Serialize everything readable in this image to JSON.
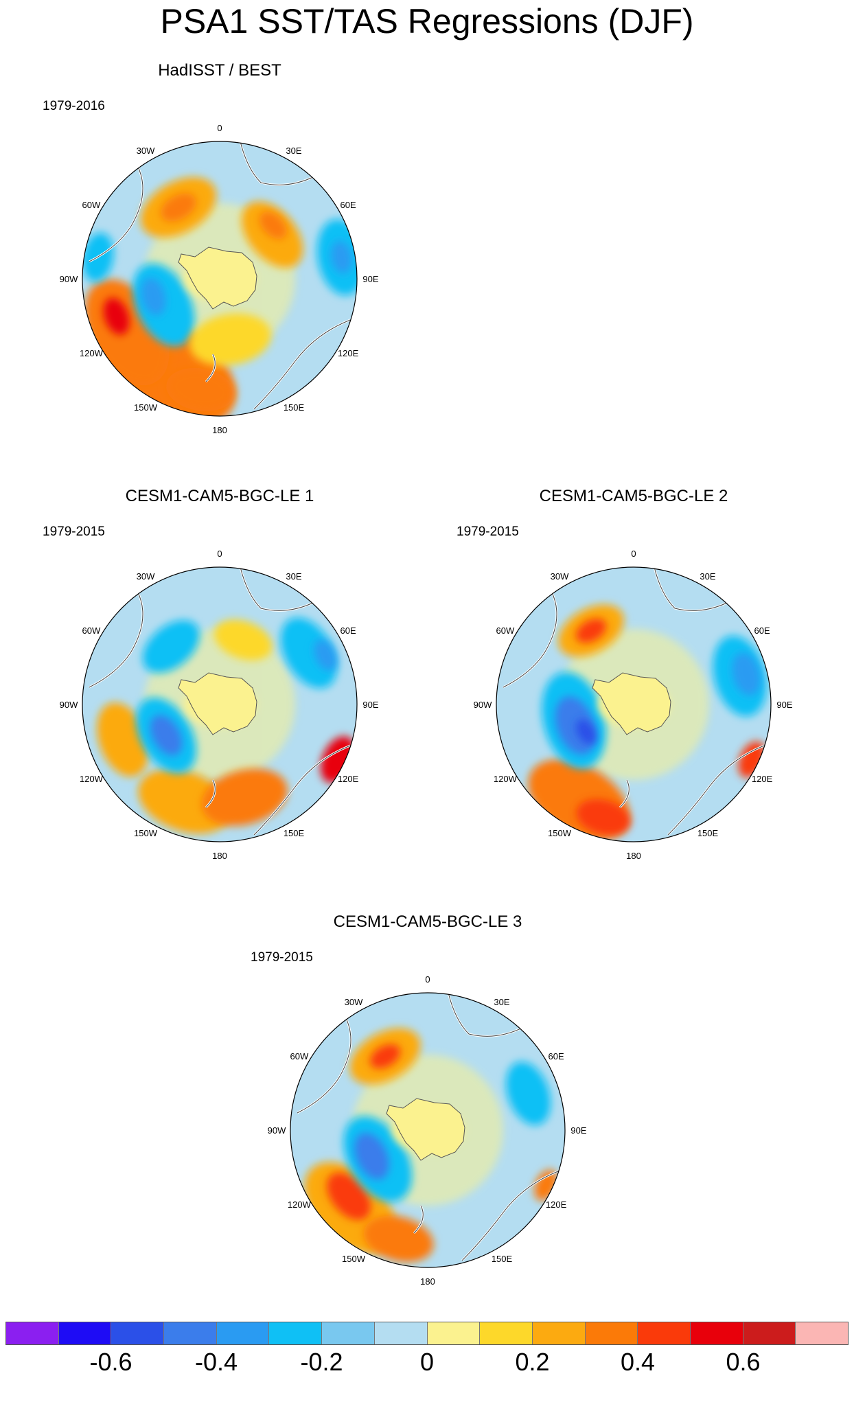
{
  "title": "PSA1 SST/TAS Regressions (DJF)",
  "lon_labels": [
    "0",
    "30E",
    "60E",
    "90E",
    "120E",
    "150E",
    "180",
    "150W",
    "120W",
    "90W",
    "60W",
    "30W"
  ],
  "panels": [
    {
      "title": "HadISST / BEST",
      "period": "1979-2016",
      "anomalies": [
        {
          "lon": 210,
          "r": 0.78,
          "size": 0.55,
          "level": 4
        },
        {
          "lon": 240,
          "r": 0.78,
          "size": 0.42,
          "level": 4
        },
        {
          "lon": 250,
          "r": 0.8,
          "size": 0.14,
          "level": 6
        },
        {
          "lon": 190,
          "r": 0.82,
          "size": 0.25,
          "level": 4
        },
        {
          "lon": 330,
          "r": 0.6,
          "size": 0.3,
          "level": 3
        },
        {
          "lon": 330,
          "r": 0.6,
          "size": 0.14,
          "level": 4
        },
        {
          "lon": 50,
          "r": 0.5,
          "size": 0.28,
          "level": 3
        },
        {
          "lon": 45,
          "r": 0.55,
          "size": 0.12,
          "level": 4
        },
        {
          "lon": 245,
          "r": 0.45,
          "size": 0.32,
          "level": -2
        },
        {
          "lon": 255,
          "r": 0.5,
          "size": 0.14,
          "level": -3
        },
        {
          "lon": 80,
          "r": 0.9,
          "size": 0.28,
          "level": -2
        },
        {
          "lon": 80,
          "r": 0.9,
          "size": 0.12,
          "level": -3
        },
        {
          "lon": 280,
          "r": 0.9,
          "size": 0.18,
          "level": -2
        },
        {
          "lon": 0,
          "r": 0.0,
          "size": 0.26,
          "level": 1
        },
        {
          "lon": 170,
          "r": 0.45,
          "size": 0.3,
          "level": 2
        }
      ]
    },
    {
      "title": "CESM1-CAM5-BGC-LE 1",
      "period": "1979-2015",
      "anomalies": [
        {
          "lon": 200,
          "r": 0.75,
          "size": 0.35,
          "level": 3
        },
        {
          "lon": 165,
          "r": 0.7,
          "size": 0.32,
          "level": 4
        },
        {
          "lon": 250,
          "r": 0.75,
          "size": 0.28,
          "level": 3
        },
        {
          "lon": 115,
          "r": 0.95,
          "size": 0.18,
          "level": 6
        },
        {
          "lon": 240,
          "r": 0.45,
          "size": 0.3,
          "level": -2
        },
        {
          "lon": 240,
          "r": 0.45,
          "size": 0.16,
          "level": -4
        },
        {
          "lon": 320,
          "r": 0.55,
          "size": 0.24,
          "level": -2
        },
        {
          "lon": 60,
          "r": 0.75,
          "size": 0.28,
          "level": -2
        },
        {
          "lon": 65,
          "r": 0.85,
          "size": 0.12,
          "level": -3
        },
        {
          "lon": 20,
          "r": 0.5,
          "size": 0.22,
          "level": 2
        },
        {
          "lon": 0,
          "r": 0.0,
          "size": 0.26,
          "level": 1
        }
      ]
    },
    {
      "title": "CESM1-CAM5-BGC-LE 2",
      "period": "1979-2015",
      "anomalies": [
        {
          "lon": 210,
          "r": 0.8,
          "size": 0.4,
          "level": 4
        },
        {
          "lon": 195,
          "r": 0.85,
          "size": 0.2,
          "level": 5
        },
        {
          "lon": 330,
          "r": 0.62,
          "size": 0.26,
          "level": 3
        },
        {
          "lon": 330,
          "r": 0.62,
          "size": 0.12,
          "level": 5
        },
        {
          "lon": 255,
          "r": 0.45,
          "size": 0.36,
          "level": -2
        },
        {
          "lon": 250,
          "r": 0.45,
          "size": 0.22,
          "level": -4
        },
        {
          "lon": 240,
          "r": 0.4,
          "size": 0.1,
          "level": -5
        },
        {
          "lon": 75,
          "r": 0.8,
          "size": 0.3,
          "level": -2
        },
        {
          "lon": 75,
          "r": 0.85,
          "size": 0.16,
          "level": -3
        },
        {
          "lon": 115,
          "r": 0.95,
          "size": 0.14,
          "level": 5
        },
        {
          "lon": 0,
          "r": 0.0,
          "size": 0.26,
          "level": 1
        }
      ]
    },
    {
      "title": "CESM1-CAM5-BGC-LE 3",
      "period": "1979-2015",
      "anomalies": [
        {
          "lon": 225,
          "r": 0.8,
          "size": 0.4,
          "level": 3
        },
        {
          "lon": 230,
          "r": 0.75,
          "size": 0.2,
          "level": 5
        },
        {
          "lon": 195,
          "r": 0.82,
          "size": 0.26,
          "level": 4
        },
        {
          "lon": 330,
          "r": 0.62,
          "size": 0.28,
          "level": 3
        },
        {
          "lon": 330,
          "r": 0.62,
          "size": 0.12,
          "level": 5
        },
        {
          "lon": 240,
          "r": 0.42,
          "size": 0.34,
          "level": -2
        },
        {
          "lon": 245,
          "r": 0.45,
          "size": 0.18,
          "level": -4
        },
        {
          "lon": 70,
          "r": 0.78,
          "size": 0.24,
          "level": -2
        },
        {
          "lon": 115,
          "r": 0.95,
          "size": 0.12,
          "level": 4
        },
        {
          "lon": 0,
          "r": 0.0,
          "size": 0.26,
          "level": 1
        }
      ]
    }
  ],
  "colorbar": {
    "colors": [
      "#8b1ff0",
      "#1e0cf5",
      "#2b50e8",
      "#3b7deb",
      "#2a9bf2",
      "#0fc0f5",
      "#79c8ef",
      "#b4ddf1",
      "#fbf28f",
      "#fdd82a",
      "#fcaa10",
      "#fb7a08",
      "#fa3a0a",
      "#e8000b",
      "#cc1c1c",
      "#fbb6b4"
    ],
    "tick_values": [
      -0.6,
      -0.4,
      -0.2,
      0,
      0.2,
      0.4,
      0.6
    ],
    "tick_labels": [
      "-0.6",
      "-0.4",
      "-0.2",
      "0",
      "0.2",
      "0.4",
      "0.6"
    ],
    "min": -0.8,
    "max": 0.8
  }
}
